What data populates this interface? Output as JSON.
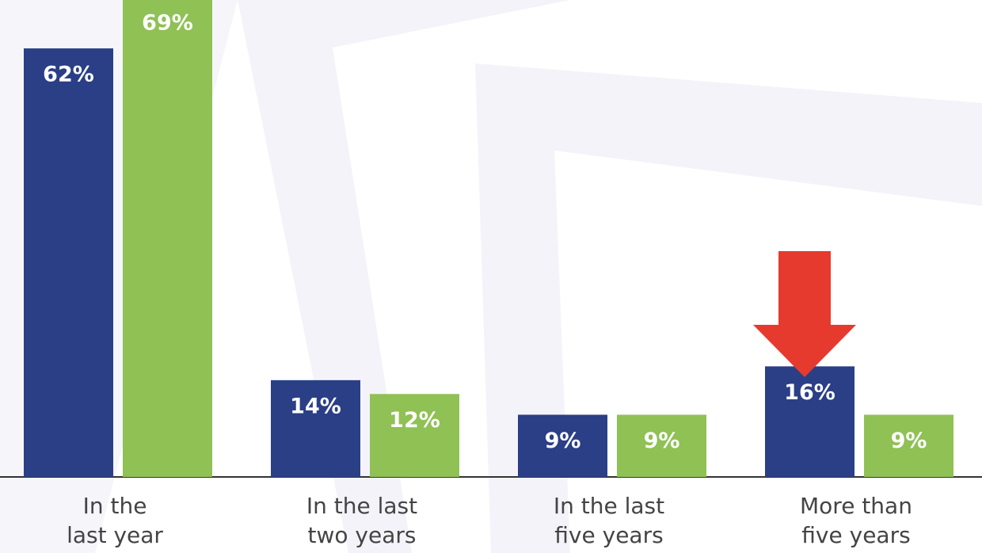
{
  "chart_data": {
    "type": "bar",
    "categories": [
      "In the\nlast year",
      "In the last\ntwo years",
      "In the last\nfive years",
      "More than\nfive years"
    ],
    "series": [
      {
        "color": "#2b3f87",
        "values": [
          62,
          14,
          9,
          16
        ],
        "value_labels": [
          "62%",
          "14%",
          "9%",
          "16%"
        ]
      },
      {
        "color": "#8fc155",
        "values": [
          69,
          12,
          9,
          9
        ],
        "value_labels": [
          "69%",
          "12%",
          "9%",
          "9%"
        ]
      }
    ],
    "ylim": [
      0,
      69
    ]
  }
}
